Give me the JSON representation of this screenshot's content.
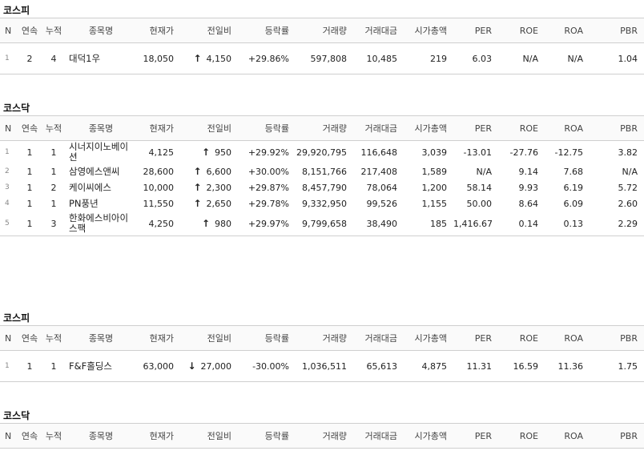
{
  "columns": [
    "N",
    "연속",
    "누적",
    "종목명",
    "현재가",
    "전일비",
    "등락률",
    "거래량",
    "거래대금",
    "시가총액",
    "PER",
    "ROE",
    "ROA",
    "PBR"
  ],
  "colors": {
    "up": "#d60000",
    "down": "#1a5fd6"
  },
  "icons": {
    "up": "up-arrow-icon",
    "down": "down-arrow-icon"
  },
  "sections": [
    {
      "title": "코스피",
      "rows": [
        {
          "n": "1",
          "run": "2",
          "cum": "4",
          "name": "대덕1우",
          "price": "18,050",
          "dir": "up",
          "change": "4,150",
          "rate": "+29.86%",
          "volume": "597,808",
          "value": "10,485",
          "cap": "219",
          "per": "6.03",
          "roe": "N/A",
          "roa": "N/A",
          "pbr": "1.04"
        }
      ]
    },
    {
      "title": "코스닥",
      "rows": [
        {
          "n": "1",
          "run": "1",
          "cum": "1",
          "name": "시너지이노베이션",
          "price": "4,125",
          "dir": "up",
          "change": "950",
          "rate": "+29.92%",
          "volume": "29,920,795",
          "value": "116,648",
          "cap": "3,039",
          "per": "-13.01",
          "roe": "-27.76",
          "roa": "-12.75",
          "pbr": "3.82"
        },
        {
          "n": "2",
          "run": "1",
          "cum": "1",
          "name": "삼영에스앤씨",
          "price": "28,600",
          "dir": "up",
          "change": "6,600",
          "rate": "+30.00%",
          "volume": "8,151,766",
          "value": "217,408",
          "cap": "1,589",
          "per": "N/A",
          "roe": "9.14",
          "roa": "7.68",
          "pbr": "N/A"
        },
        {
          "n": "3",
          "run": "1",
          "cum": "2",
          "name": "케이씨에스",
          "price": "10,000",
          "dir": "up",
          "change": "2,300",
          "rate": "+29.87%",
          "volume": "8,457,790",
          "value": "78,064",
          "cap": "1,200",
          "per": "58.14",
          "roe": "9.93",
          "roa": "6.19",
          "pbr": "5.72"
        },
        {
          "n": "4",
          "run": "1",
          "cum": "1",
          "name": "PN풍년",
          "price": "11,550",
          "dir": "up",
          "change": "2,650",
          "rate": "+29.78%",
          "volume": "9,332,950",
          "value": "99,526",
          "cap": "1,155",
          "per": "50.00",
          "roe": "8.64",
          "roa": "6.09",
          "pbr": "2.60"
        },
        {
          "n": "5",
          "run": "1",
          "cum": "3",
          "name": "한화에스비아이스팩",
          "price": "4,250",
          "dir": "up",
          "change": "980",
          "rate": "+29.97%",
          "volume": "9,799,658",
          "value": "38,490",
          "cap": "185",
          "per": "1,416.67",
          "roe": "0.14",
          "roa": "0.13",
          "pbr": "2.29"
        }
      ]
    },
    {
      "title": "코스피",
      "rows": [
        {
          "n": "1",
          "run": "1",
          "cum": "1",
          "name": "F&F홀딩스",
          "price": "63,000",
          "dir": "down",
          "change": "27,000",
          "rate": "-30.00%",
          "volume": "1,036,511",
          "value": "65,613",
          "cap": "4,875",
          "per": "11.31",
          "roe": "16.59",
          "roa": "11.36",
          "pbr": "1.75"
        }
      ]
    },
    {
      "title": "코스닥",
      "rows": []
    }
  ]
}
